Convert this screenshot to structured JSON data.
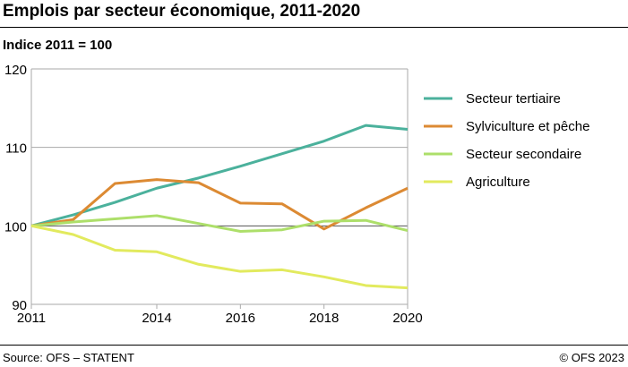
{
  "title": "Emplois par secteur économique, 2011-2020",
  "source": "Source: OFS – STATENT",
  "copyright": "© OFS 2023",
  "chart_data": {
    "type": "line",
    "subtitle": "Indice 2011 = 100",
    "x": [
      2011,
      2012,
      2013,
      2014,
      2015,
      2016,
      2017,
      2018,
      2019,
      2020
    ],
    "x_ticks": [
      "2011",
      "2014",
      "2016",
      "2018",
      "2020"
    ],
    "y_ticks": [
      "90",
      "100",
      "110",
      "120"
    ],
    "ylim": [
      90,
      120
    ],
    "xlim": [
      2011,
      2020
    ],
    "legend_position": "right",
    "series": [
      {
        "name": "Secteur tertiaire",
        "color": "#4bb19c",
        "values": [
          100,
          101.4,
          103.0,
          104.8,
          106.1,
          107.6,
          109.2,
          110.8,
          112.8,
          112.3
        ]
      },
      {
        "name": "Sylviculture et pêche",
        "color": "#dc8a33",
        "values": [
          100,
          100.8,
          105.4,
          105.9,
          105.5,
          102.9,
          102.8,
          99.6,
          102.3,
          104.8
        ]
      },
      {
        "name": "Secteur secondaire",
        "color": "#addf6a",
        "values": [
          100,
          100.5,
          100.9,
          101.3,
          100.3,
          99.3,
          99.5,
          100.6,
          100.7,
          99.4
        ]
      },
      {
        "name": "Agriculture",
        "color": "#e2ea5e",
        "values": [
          100,
          98.9,
          96.9,
          96.7,
          95.1,
          94.2,
          94.4,
          93.5,
          92.4,
          92.1
        ]
      }
    ]
  }
}
